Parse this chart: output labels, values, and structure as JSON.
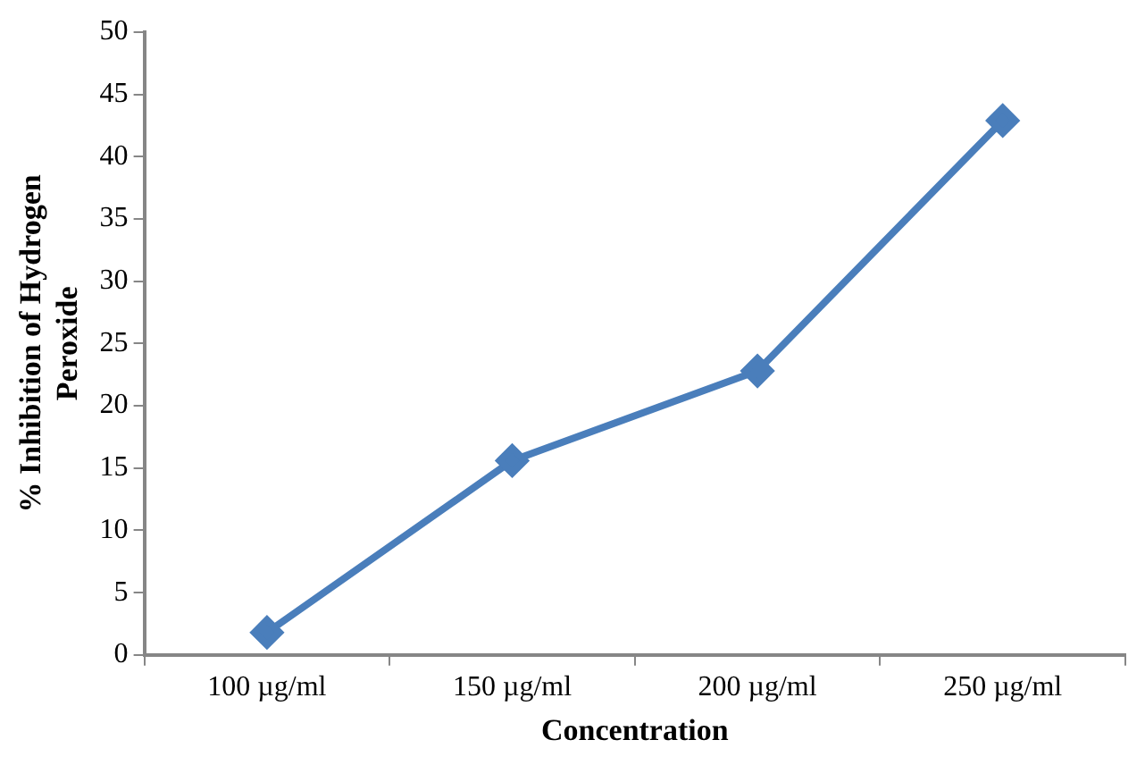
{
  "chart_data": {
    "type": "line",
    "xlabel": "Concentration",
    "ylabel": "% Inhibition of Hydrogen Peroxide",
    "categories": [
      "100 µg/ml",
      "150 µg/ml",
      "200 µg/ml",
      "250 µg/ml"
    ],
    "series": [
      {
        "color": "#4a7ebb",
        "values": [
          1.8,
          15.6,
          22.8,
          42.9
        ]
      }
    ],
    "ylim": [
      0,
      50
    ],
    "yticks": [
      0,
      5,
      10,
      15,
      20,
      25,
      30,
      35,
      40,
      45,
      50
    ],
    "grid": false,
    "legend": false,
    "marker": "diamond",
    "line_style": "solid"
  }
}
